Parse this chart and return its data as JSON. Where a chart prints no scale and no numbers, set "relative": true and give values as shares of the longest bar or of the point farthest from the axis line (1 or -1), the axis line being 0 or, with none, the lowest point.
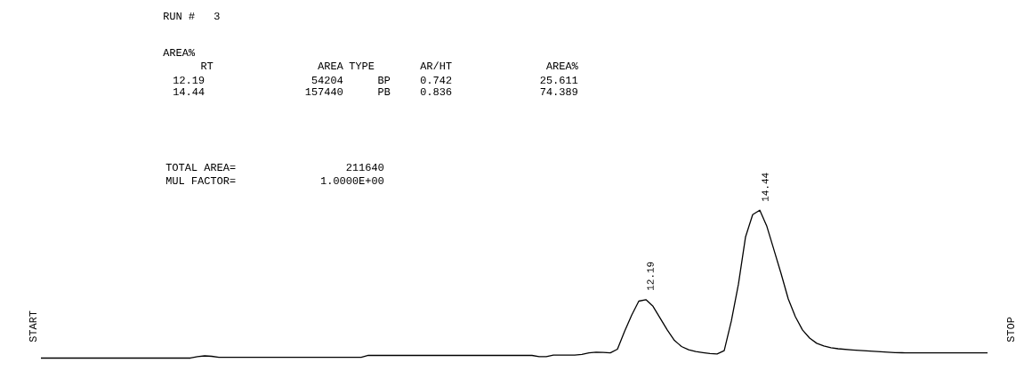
{
  "chart_data": {
    "type": "line",
    "relative": true,
    "color": "#000000",
    "categories": [
      null,
      null,
      null,
      null,
      null,
      null,
      null,
      null,
      null,
      null,
      null,
      null,
      null,
      null,
      null,
      null,
      null,
      null,
      null,
      null,
      null,
      null,
      null,
      null,
      null,
      null,
      null,
      null,
      null,
      null,
      null,
      null,
      null,
      null,
      null,
      null,
      null,
      null,
      null,
      null,
      null,
      null,
      null,
      null,
      null,
      null,
      null,
      null,
      null,
      null,
      null,
      null,
      null,
      null,
      null,
      null,
      null,
      null,
      null,
      null,
      null,
      null,
      null,
      null,
      null,
      null,
      null,
      null,
      null,
      null,
      null,
      null,
      null,
      null,
      null,
      null,
      null,
      null,
      null,
      null,
      null,
      null,
      null,
      null,
      null,
      null,
      null,
      null,
      null,
      null,
      null,
      null,
      null,
      null,
      null,
      null,
      null,
      null,
      null,
      null,
      null,
      null,
      null,
      null,
      null,
      null,
      null,
      null,
      null,
      null,
      null,
      null,
      null,
      null,
      null,
      null,
      null,
      null,
      null,
      null,
      null,
      null,
      null,
      null,
      null,
      null,
      null,
      null,
      null,
      null,
      null,
      null,
      null,
      null
    ],
    "values": [
      0,
      0,
      0,
      0,
      0,
      0,
      0,
      0,
      0,
      0,
      0,
      0,
      0,
      0,
      0,
      0,
      0,
      0,
      0,
      0,
      0,
      0,
      0.01,
      0.015,
      0.012,
      0.005,
      0.005,
      0.005,
      0.005,
      0.005,
      0.005,
      0.005,
      0.005,
      0.005,
      0.005,
      0.005,
      0.005,
      0.005,
      0.005,
      0.005,
      0.005,
      0.005,
      0.005,
      0.005,
      0.005,
      0.005,
      0.018,
      0.018,
      0.018,
      0.018,
      0.018,
      0.018,
      0.018,
      0.018,
      0.018,
      0.018,
      0.018,
      0.018,
      0.018,
      0.018,
      0.018,
      0.018,
      0.018,
      0.018,
      0.018,
      0.018,
      0.018,
      0.018,
      0.018,
      0.018,
      0.01,
      0.01,
      0.02,
      0.02,
      0.02,
      0.02,
      0.025,
      0.035,
      0.04,
      0.038,
      0.035,
      0.06,
      0.18,
      0.29,
      0.385,
      0.395,
      0.35,
      0.27,
      0.19,
      0.12,
      0.078,
      0.056,
      0.044,
      0.037,
      0.031,
      0.028,
      0.05,
      0.25,
      0.5,
      0.82,
      0.97,
      1.0,
      0.89,
      0.73,
      0.57,
      0.4,
      0.28,
      0.19,
      0.135,
      0.1,
      0.082,
      0.07,
      0.063,
      0.059,
      0.055,
      0.052,
      0.049,
      0.046,
      0.043,
      0.04,
      0.037,
      0.036,
      0.035,
      0.035,
      0.035,
      0.035,
      0.035,
      0.035,
      0.035,
      0.035,
      0.035,
      0.035,
      0.035,
      0.035
    ],
    "annotations": [
      "RUN #",
      "3",
      "AREA%",
      "RT",
      "AREA",
      "TYPE",
      "AR/HT",
      "AREA%",
      "12.19",
      "54204",
      "BP",
      "0.742",
      "25.611",
      "14.44",
      "157440",
      "PB",
      "0.836",
      "74.389",
      "TOTAL AREA=",
      "211640",
      "MUL FACTOR=",
      "1.0000E+00",
      "START",
      "STOP",
      "12.19",
      "14.44"
    ]
  }
}
